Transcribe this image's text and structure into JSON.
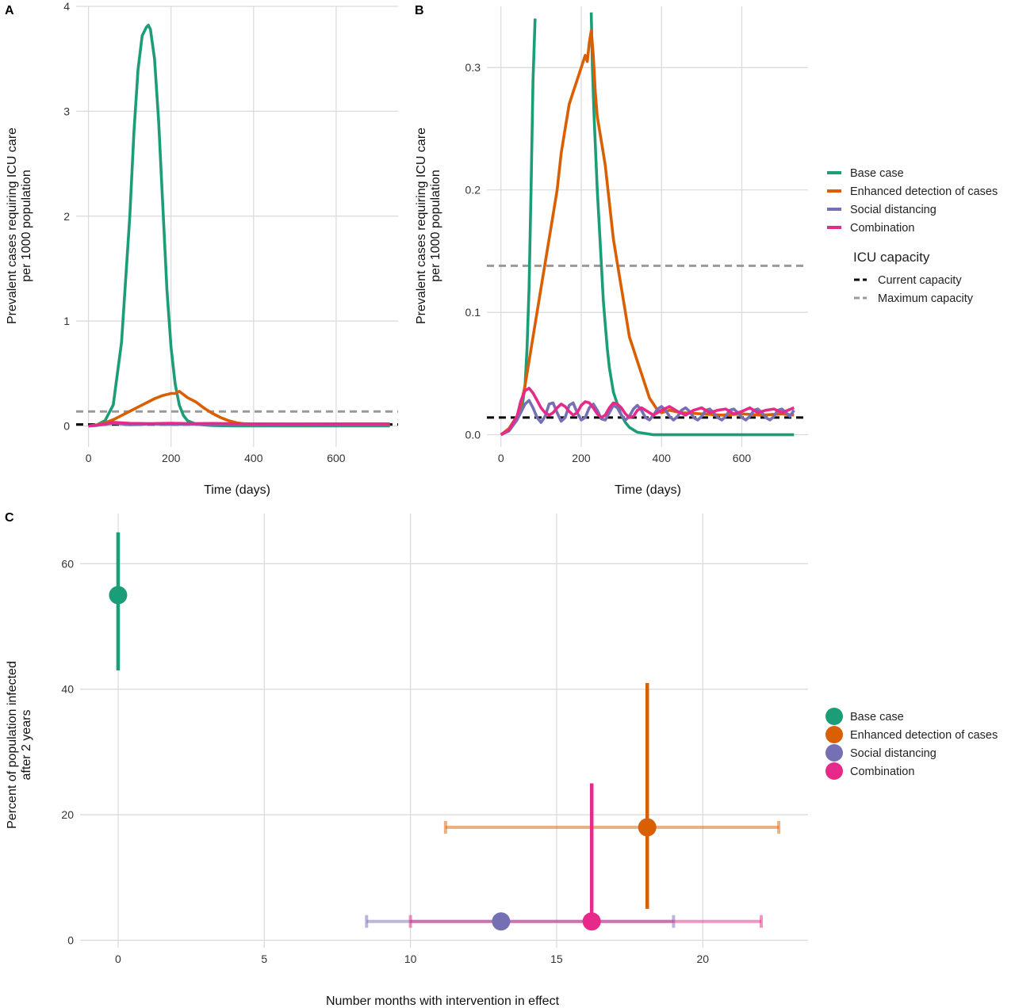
{
  "panels": [
    {
      "letter": "A",
      "chart_data": {
        "type": "line",
        "xlabel": "Time (days)",
        "ylabel": [
          "Prevalent cases requiring ICU care",
          "per 1000 population"
        ],
        "xlim": [
          -30,
          750
        ],
        "ylim": [
          -0.2,
          4.0
        ],
        "xticks": [
          0,
          200,
          400,
          600
        ],
        "yticks": [
          0,
          1,
          2,
          3,
          4
        ],
        "ytick_labels": [
          "0",
          "1",
          "2",
          "3",
          "4"
        ],
        "series": [
          {
            "name": "Base case",
            "color": "#1b9e77",
            "x": [
              0,
              20,
              40,
              60,
              80,
              100,
              110,
              120,
              130,
              140,
              145,
              150,
              160,
              170,
              180,
              190,
              200,
              210,
              220,
              230,
              240,
              260,
              280,
              300,
              350,
              400,
              500,
              600,
              730
            ],
            "y": [
              0,
              0.01,
              0.05,
              0.2,
              0.8,
              2.0,
              2.8,
              3.4,
              3.72,
              3.8,
              3.82,
              3.78,
              3.5,
              2.9,
              2.1,
              1.3,
              0.75,
              0.4,
              0.2,
              0.1,
              0.05,
              0.02,
              0.01,
              0.005,
              0,
              0,
              0,
              0,
              0
            ]
          },
          {
            "name": "Enhanced detection of cases",
            "color": "#d95f02",
            "x": [
              0,
              20,
              40,
              60,
              80,
              100,
              120,
              140,
              160,
              180,
              200,
              210,
              220,
              230,
              240,
              260,
              280,
              300,
              320,
              340,
              360,
              380,
              400,
              500,
              600,
              730
            ],
            "y": [
              0,
              0.01,
              0.03,
              0.06,
              0.1,
              0.14,
              0.18,
              0.22,
              0.26,
              0.29,
              0.31,
              0.31,
              0.33,
              0.3,
              0.27,
              0.23,
              0.17,
              0.12,
              0.08,
              0.05,
              0.03,
              0.02,
              0.015,
              0.015,
              0.015,
              0.015
            ]
          },
          {
            "name": "Social distancing",
            "color": "#7570b3",
            "x": [
              0,
              20,
              40,
              60,
              80,
              100,
              150,
              200,
              250,
              300,
              400,
              500,
              600,
              730
            ],
            "y": [
              0,
              0.005,
              0.015,
              0.025,
              0.02,
              0.012,
              0.02,
              0.015,
              0.018,
              0.016,
              0.018,
              0.017,
              0.018,
              0.018
            ]
          },
          {
            "name": "Combination",
            "color": "#e7298a",
            "x": [
              0,
              20,
              40,
              60,
              80,
              100,
              150,
              200,
              250,
              300,
              400,
              500,
              600,
              730
            ],
            "y": [
              0,
              0.008,
              0.02,
              0.035,
              0.03,
              0.025,
              0.022,
              0.026,
              0.022,
              0.024,
              0.02,
              0.02,
              0.02,
              0.02
            ]
          }
        ],
        "hlines": [
          {
            "name": "Current capacity",
            "y": 0.014,
            "color": "#000000",
            "dash": "dashed"
          },
          {
            "name": "Maximum capacity",
            "y": 0.138,
            "color": "#999999",
            "dash": "dashed"
          }
        ]
      }
    },
    {
      "letter": "B",
      "chart_data": {
        "type": "line",
        "xlabel": "Time (days)",
        "ylabel": [
          "Prevalent cases requiring ICU care",
          "per 1000 population"
        ],
        "xlim": [
          -35,
          765
        ],
        "ylim": [
          -0.01,
          0.35
        ],
        "xticks": [
          0,
          200,
          400,
          600
        ],
        "yticks": [
          0,
          0.1,
          0.2,
          0.3
        ],
        "ytick_labels": [
          "0.0",
          "0.1",
          "0.2",
          "0.3"
        ],
        "series": [
          {
            "name": "Base case",
            "color": "#1b9e77",
            "segments": [
              {
                "x": [
                  0,
                  20,
                  30,
                  40,
                  50,
                  55,
                  60,
                  65,
                  70,
                  75,
                  80,
                  85
                ],
                "y": [
                  0,
                  0.004,
                  0.008,
                  0.013,
                  0.02,
                  0.028,
                  0.04,
                  0.07,
                  0.12,
                  0.2,
                  0.29,
                  0.34
                ]
              },
              {
                "x": [
                  225,
                  228,
                  232,
                  236,
                  240,
                  245,
                  250,
                  255,
                  260,
                  265,
                  270,
                  280,
                  290,
                  300,
                  310,
                  320,
                  330,
                  340,
                  360,
                  380,
                  400,
                  500,
                  600,
                  730
                ],
                "y": [
                  0.345,
                  0.3,
                  0.26,
                  0.23,
                  0.2,
                  0.17,
                  0.14,
                  0.11,
                  0.09,
                  0.07,
                  0.055,
                  0.035,
                  0.025,
                  0.016,
                  0.01,
                  0.006,
                  0.004,
                  0.002,
                  0.001,
                  0,
                  0,
                  0,
                  0,
                  0
                ]
              }
            ]
          },
          {
            "name": "Enhanced detection of cases",
            "color": "#d95f02",
            "x": [
              0,
              20,
              40,
              50,
              60,
              80,
              100,
              120,
              140,
              150,
              160,
              170,
              180,
              190,
              200,
              210,
              215,
              220,
              225,
              230,
              235,
              240,
              250,
              260,
              270,
              280,
              290,
              300,
              310,
              320,
              330,
              340,
              350,
              360,
              370,
              380,
              390,
              400,
              420,
              450,
              500,
              550,
              600,
              650,
              700,
              730
            ],
            "y": [
              0,
              0.005,
              0.015,
              0.025,
              0.04,
              0.08,
              0.12,
              0.16,
              0.2,
              0.23,
              0.25,
              0.27,
              0.28,
              0.29,
              0.3,
              0.31,
              0.305,
              0.32,
              0.33,
              0.31,
              0.28,
              0.26,
              0.24,
              0.22,
              0.19,
              0.16,
              0.14,
              0.12,
              0.1,
              0.08,
              0.07,
              0.06,
              0.05,
              0.04,
              0.03,
              0.025,
              0.02,
              0.018,
              0.02,
              0.018,
              0.017,
              0.016,
              0.017,
              0.016,
              0.017,
              0.016
            ]
          },
          {
            "name": "Social distancing",
            "color": "#7570b3",
            "x": [
              0,
              20,
              40,
              60,
              70,
              80,
              90,
              100,
              110,
              120,
              130,
              140,
              150,
              160,
              170,
              180,
              190,
              200,
              210,
              220,
              230,
              240,
              250,
              260,
              270,
              280,
              290,
              300,
              310,
              320,
              330,
              340,
              350,
              360,
              370,
              380,
              390,
              400,
              410,
              420,
              430,
              440,
              450,
              460,
              470,
              480,
              490,
              500,
              510,
              520,
              530,
              540,
              550,
              560,
              570,
              580,
              590,
              600,
              610,
              620,
              630,
              640,
              650,
              660,
              670,
              680,
              690,
              700,
              710,
              720,
              730
            ],
            "y": [
              0,
              0.003,
              0.012,
              0.025,
              0.028,
              0.022,
              0.014,
              0.01,
              0.015,
              0.025,
              0.026,
              0.018,
              0.011,
              0.014,
              0.024,
              0.026,
              0.018,
              0.012,
              0.014,
              0.022,
              0.025,
              0.02,
              0.013,
              0.012,
              0.018,
              0.024,
              0.022,
              0.016,
              0.012,
              0.015,
              0.021,
              0.024,
              0.02,
              0.014,
              0.012,
              0.016,
              0.021,
              0.023,
              0.02,
              0.015,
              0.012,
              0.015,
              0.02,
              0.022,
              0.019,
              0.014,
              0.012,
              0.015,
              0.02,
              0.021,
              0.018,
              0.014,
              0.012,
              0.015,
              0.02,
              0.021,
              0.018,
              0.014,
              0.012,
              0.015,
              0.02,
              0.021,
              0.018,
              0.014,
              0.012,
              0.015,
              0.02,
              0.021,
              0.018,
              0.015,
              0.02
            ]
          },
          {
            "name": "Combination",
            "color": "#e7298a",
            "x": [
              0,
              20,
              40,
              50,
              60,
              70,
              80,
              90,
              100,
              110,
              120,
              130,
              140,
              150,
              160,
              170,
              180,
              190,
              200,
              210,
              220,
              230,
              240,
              250,
              260,
              270,
              280,
              290,
              300,
              310,
              320,
              330,
              340,
              350,
              360,
              380,
              400,
              420,
              440,
              460,
              480,
              500,
              520,
              540,
              560,
              580,
              600,
              620,
              640,
              660,
              680,
              700,
              730
            ],
            "y": [
              0,
              0.004,
              0.015,
              0.028,
              0.036,
              0.038,
              0.034,
              0.028,
              0.022,
              0.018,
              0.016,
              0.018,
              0.022,
              0.025,
              0.023,
              0.019,
              0.016,
              0.018,
              0.024,
              0.027,
              0.026,
              0.022,
              0.017,
              0.014,
              0.016,
              0.022,
              0.026,
              0.025,
              0.022,
              0.017,
              0.014,
              0.015,
              0.02,
              0.022,
              0.02,
              0.016,
              0.02,
              0.023,
              0.019,
              0.016,
              0.02,
              0.022,
              0.018,
              0.02,
              0.021,
              0.017,
              0.019,
              0.022,
              0.018,
              0.02,
              0.021,
              0.018,
              0.022
            ]
          }
        ],
        "hlines": [
          {
            "name": "Current capacity",
            "y": 0.014,
            "color": "#000000",
            "dash": "dashed"
          },
          {
            "name": "Maximum capacity",
            "y": 0.138,
            "color": "#999999",
            "dash": "dashed"
          }
        ]
      }
    },
    {
      "letter": "C",
      "chart_data": {
        "type": "scatter",
        "xlabel": "Number months with intervention in effect",
        "ylabel": [
          "Percent of population infected",
          "after 2 years"
        ],
        "xlim": [
          -1.3,
          23.6
        ],
        "ylim": [
          -1.2,
          68
        ],
        "xticks": [
          0,
          5,
          10,
          15,
          20
        ],
        "yticks": [
          0,
          20,
          40,
          60
        ],
        "points": [
          {
            "name": "Base case",
            "color": "#1b9e77",
            "x": 0,
            "y": 55,
            "y_low": 43,
            "y_high": 65,
            "x_low": null,
            "x_high": null
          },
          {
            "name": "Enhanced detection of cases",
            "color": "#d95f02",
            "x": 18.1,
            "y": 18,
            "y_low": 5,
            "y_high": 41,
            "x_low": 11.2,
            "x_high": 22.6
          },
          {
            "name": "Social distancing",
            "color": "#7570b3",
            "x": 13.1,
            "y": 3,
            "y_low": null,
            "y_high": null,
            "x_low": 8.5,
            "x_high": 19.0
          },
          {
            "name": "Combination",
            "color": "#e7298a",
            "x": 16.2,
            "y": 3,
            "y_low": 3,
            "y_high": 25,
            "x_low": 10.0,
            "x_high": 22.0
          }
        ]
      }
    }
  ],
  "legend_top": {
    "items": [
      {
        "label": "Base case",
        "color": "#1b9e77"
      },
      {
        "label": "Enhanced detection of cases",
        "color": "#d95f02"
      },
      {
        "label": "Social distancing",
        "color": "#7570b3"
      },
      {
        "label": "Combination",
        "color": "#e7298a"
      }
    ],
    "capacity_title": "ICU capacity",
    "capacity_items": [
      {
        "label": "Current capacity",
        "color": "#000000"
      },
      {
        "label": "Maximum capacity",
        "color": "#999999"
      }
    ]
  },
  "legend_bottom": {
    "items": [
      {
        "label": "Base case",
        "color": "#1b9e77"
      },
      {
        "label": "Enhanced detection of cases",
        "color": "#d95f02"
      },
      {
        "label": "Social distancing",
        "color": "#7570b3"
      },
      {
        "label": "Combination",
        "color": "#e7298a"
      }
    ]
  }
}
